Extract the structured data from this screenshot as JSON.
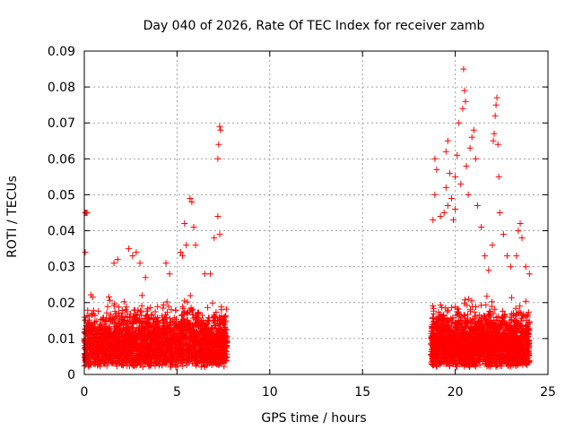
{
  "chart_data": {
    "type": "scatter",
    "title": "Day 040 of 2026, Rate Of TEC Index for receiver zamb",
    "xlabel": "GPS time / hours",
    "ylabel": "ROTI / TECUs",
    "xlim": [
      0,
      25
    ],
    "ylim": [
      0,
      0.09
    ],
    "xticks": [
      0,
      5,
      10,
      15,
      20,
      25
    ],
    "yticks": [
      0,
      0.01,
      0.02,
      0.03,
      0.04,
      0.05,
      0.06,
      0.07,
      0.08,
      0.09
    ],
    "grid": true,
    "marker": "+",
    "color": "#ff0000",
    "series": [
      {
        "name": "ROTI",
        "clusters": [
          {
            "x_range": [
              0.0,
              7.7
            ],
            "y_range": [
              0.002,
              0.025
            ],
            "count": 2600
          },
          {
            "x_range": [
              18.7,
              24.0
            ],
            "y_range": [
              0.002,
              0.025
            ],
            "count": 2200
          }
        ],
        "points": [
          [
            0.05,
            0.045
          ],
          [
            0.1,
            0.045
          ],
          [
            0.15,
            0.045
          ],
          [
            0.05,
            0.034
          ],
          [
            1.6,
            0.031
          ],
          [
            1.8,
            0.032
          ],
          [
            2.4,
            0.035
          ],
          [
            2.6,
            0.033
          ],
          [
            2.8,
            0.034
          ],
          [
            3.0,
            0.031
          ],
          [
            3.3,
            0.027
          ],
          [
            4.4,
            0.031
          ],
          [
            4.6,
            0.028
          ],
          [
            5.2,
            0.034
          ],
          [
            5.3,
            0.033
          ],
          [
            5.4,
            0.042
          ],
          [
            5.5,
            0.036
          ],
          [
            5.7,
            0.049
          ],
          [
            5.8,
            0.048
          ],
          [
            5.9,
            0.041
          ],
          [
            6.0,
            0.036
          ],
          [
            6.5,
            0.028
          ],
          [
            6.8,
            0.028
          ],
          [
            7.0,
            0.038
          ],
          [
            7.2,
            0.044
          ],
          [
            7.3,
            0.039
          ],
          [
            7.2,
            0.06
          ],
          [
            7.25,
            0.064
          ],
          [
            7.3,
            0.069
          ],
          [
            7.35,
            0.068
          ],
          [
            18.8,
            0.043
          ],
          [
            18.9,
            0.05
          ],
          [
            19.0,
            0.057
          ],
          [
            18.9,
            0.06
          ],
          [
            19.2,
            0.044
          ],
          [
            19.4,
            0.045
          ],
          [
            19.5,
            0.052
          ],
          [
            19.6,
            0.047
          ],
          [
            19.5,
            0.062
          ],
          [
            19.6,
            0.065
          ],
          [
            19.7,
            0.056
          ],
          [
            19.8,
            0.049
          ],
          [
            19.9,
            0.043
          ],
          [
            20.0,
            0.046
          ],
          [
            20.0,
            0.055
          ],
          [
            20.1,
            0.061
          ],
          [
            20.2,
            0.07
          ],
          [
            20.3,
            0.053
          ],
          [
            20.4,
            0.074
          ],
          [
            20.45,
            0.085
          ],
          [
            20.5,
            0.079
          ],
          [
            20.55,
            0.076
          ],
          [
            20.6,
            0.058
          ],
          [
            20.7,
            0.05
          ],
          [
            20.8,
            0.063
          ],
          [
            20.9,
            0.066
          ],
          [
            21.0,
            0.068
          ],
          [
            21.1,
            0.06
          ],
          [
            21.2,
            0.047
          ],
          [
            21.4,
            0.041
          ],
          [
            21.6,
            0.033
          ],
          [
            21.8,
            0.029
          ],
          [
            22.0,
            0.036
          ],
          [
            22.05,
            0.065
          ],
          [
            22.1,
            0.067
          ],
          [
            22.15,
            0.072
          ],
          [
            22.2,
            0.075
          ],
          [
            22.25,
            0.077
          ],
          [
            22.3,
            0.064
          ],
          [
            22.35,
            0.055
          ],
          [
            22.4,
            0.045
          ],
          [
            22.6,
            0.039
          ],
          [
            22.8,
            0.033
          ],
          [
            23.0,
            0.03
          ],
          [
            23.3,
            0.033
          ],
          [
            23.4,
            0.04
          ],
          [
            23.5,
            0.042
          ],
          [
            23.6,
            0.038
          ],
          [
            23.8,
            0.03
          ],
          [
            24.0,
            0.028
          ]
        ]
      }
    ]
  }
}
